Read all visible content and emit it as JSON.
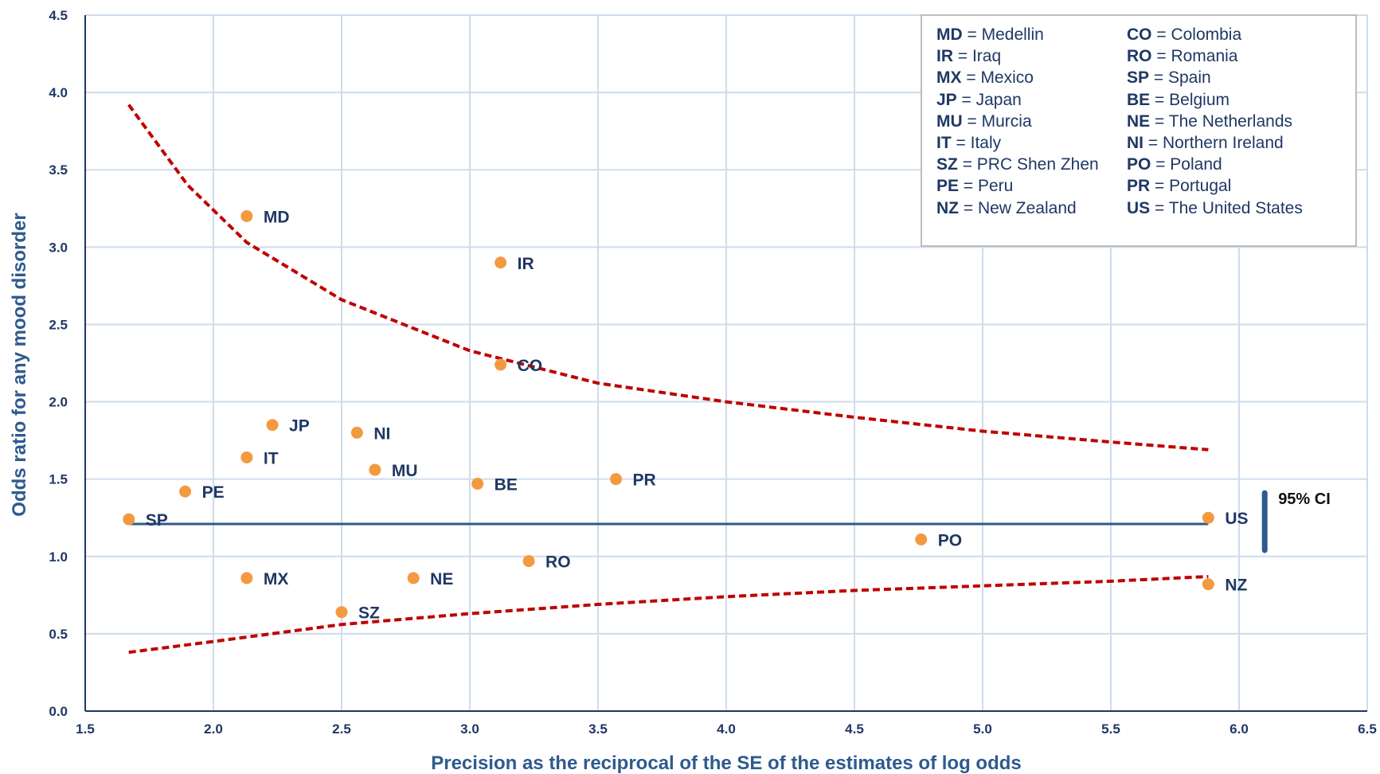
{
  "chart_data": {
    "type": "scatter",
    "title": "",
    "xlabel": "Precision as the reciprocal of the SE of the estimates of log odds",
    "ylabel": "Odds ratio for any mood disorder",
    "xlim": [
      1.5,
      6.5
    ],
    "ylim": [
      0.0,
      4.5
    ],
    "x_ticks": [
      "1.5",
      "2.0",
      "2.5",
      "3.0",
      "3.5",
      "4.0",
      "4.5",
      "5.0",
      "5.5",
      "6.0",
      "6.5"
    ],
    "y_ticks": [
      "0.0",
      "0.5",
      "1.0",
      "1.5",
      "2.0",
      "2.5",
      "3.0",
      "3.5",
      "4.0",
      "4.5"
    ],
    "grid": true,
    "point_color": "#f39a3f",
    "points": [
      {
        "label": "MD",
        "x": 2.13,
        "y": 3.2
      },
      {
        "label": "IR",
        "x": 3.12,
        "y": 2.9
      },
      {
        "label": "CO",
        "x": 3.12,
        "y": 2.24
      },
      {
        "label": "JP",
        "x": 2.23,
        "y": 1.85
      },
      {
        "label": "NI",
        "x": 2.56,
        "y": 1.8
      },
      {
        "label": "IT",
        "x": 2.13,
        "y": 1.64
      },
      {
        "label": "MU",
        "x": 2.63,
        "y": 1.56
      },
      {
        "label": "BE",
        "x": 3.03,
        "y": 1.47
      },
      {
        "label": "PR",
        "x": 3.57,
        "y": 1.5
      },
      {
        "label": "PE",
        "x": 1.89,
        "y": 1.42
      },
      {
        "label": "SP",
        "x": 1.67,
        "y": 1.24
      },
      {
        "label": "US",
        "x": 5.88,
        "y": 1.25
      },
      {
        "label": "PO",
        "x": 4.76,
        "y": 1.11
      },
      {
        "label": "RO",
        "x": 3.23,
        "y": 0.97
      },
      {
        "label": "MX",
        "x": 2.13,
        "y": 0.86
      },
      {
        "label": "NE",
        "x": 2.78,
        "y": 0.86
      },
      {
        "label": "SZ",
        "x": 2.5,
        "y": 0.64
      },
      {
        "label": "NZ",
        "x": 5.88,
        "y": 0.82
      }
    ],
    "pooled_line": {
      "y": 1.21,
      "x_from": 1.67,
      "x_to": 5.88,
      "color": "#2e5a8e"
    },
    "upper_ci_curve": {
      "color": "#c00000",
      "points": [
        [
          1.67,
          3.92
        ],
        [
          1.9,
          3.4
        ],
        [
          2.13,
          3.03
        ],
        [
          2.5,
          2.66
        ],
        [
          3.0,
          2.33
        ],
        [
          3.5,
          2.12
        ],
        [
          4.0,
          2.0
        ],
        [
          4.5,
          1.9
        ],
        [
          5.0,
          1.81
        ],
        [
          5.5,
          1.74
        ],
        [
          5.88,
          1.69
        ]
      ]
    },
    "lower_ci_curve": {
      "color": "#c00000",
      "points": [
        [
          1.67,
          0.38
        ],
        [
          2.0,
          0.45
        ],
        [
          2.5,
          0.56
        ],
        [
          3.0,
          0.63
        ],
        [
          3.5,
          0.69
        ],
        [
          4.0,
          0.74
        ],
        [
          4.5,
          0.78
        ],
        [
          5.0,
          0.81
        ],
        [
          5.5,
          0.84
        ],
        [
          5.88,
          0.87
        ]
      ]
    },
    "ci_bar": {
      "label": "95% CI",
      "x": 6.1,
      "y_from": 1.04,
      "y_to": 1.41,
      "color": "#2e5a8e"
    }
  },
  "legend": {
    "left": [
      {
        "code": "MD",
        "name": "= Medellin"
      },
      {
        "code": "IR",
        "name": "= Iraq"
      },
      {
        "code": "MX",
        "name": "= Mexico"
      },
      {
        "code": "JP",
        "name": "= Japan"
      },
      {
        "code": "MU",
        "name": "= Murcia"
      },
      {
        "code": "IT",
        "name": "= Italy"
      },
      {
        "code": "SZ",
        "name": "= PRC Shen Zhen"
      },
      {
        "code": "PE",
        "name": "= Peru"
      },
      {
        "code": "NZ",
        "name": "= New Zealand"
      }
    ],
    "right": [
      {
        "code": "CO",
        "name": "= Colombia"
      },
      {
        "code": "RO",
        "name": "= Romania"
      },
      {
        "code": "SP",
        "name": "= Spain"
      },
      {
        "code": "BE",
        "name": "= Belgium"
      },
      {
        "code": "NE",
        "name": "= The Netherlands"
      },
      {
        "code": "NI",
        "name": "= Northern Ireland"
      },
      {
        "code": "PO",
        "name": "= Poland"
      },
      {
        "code": "PR",
        "name": "= Portugal"
      },
      {
        "code": "US",
        "name": "= The United States"
      }
    ]
  }
}
